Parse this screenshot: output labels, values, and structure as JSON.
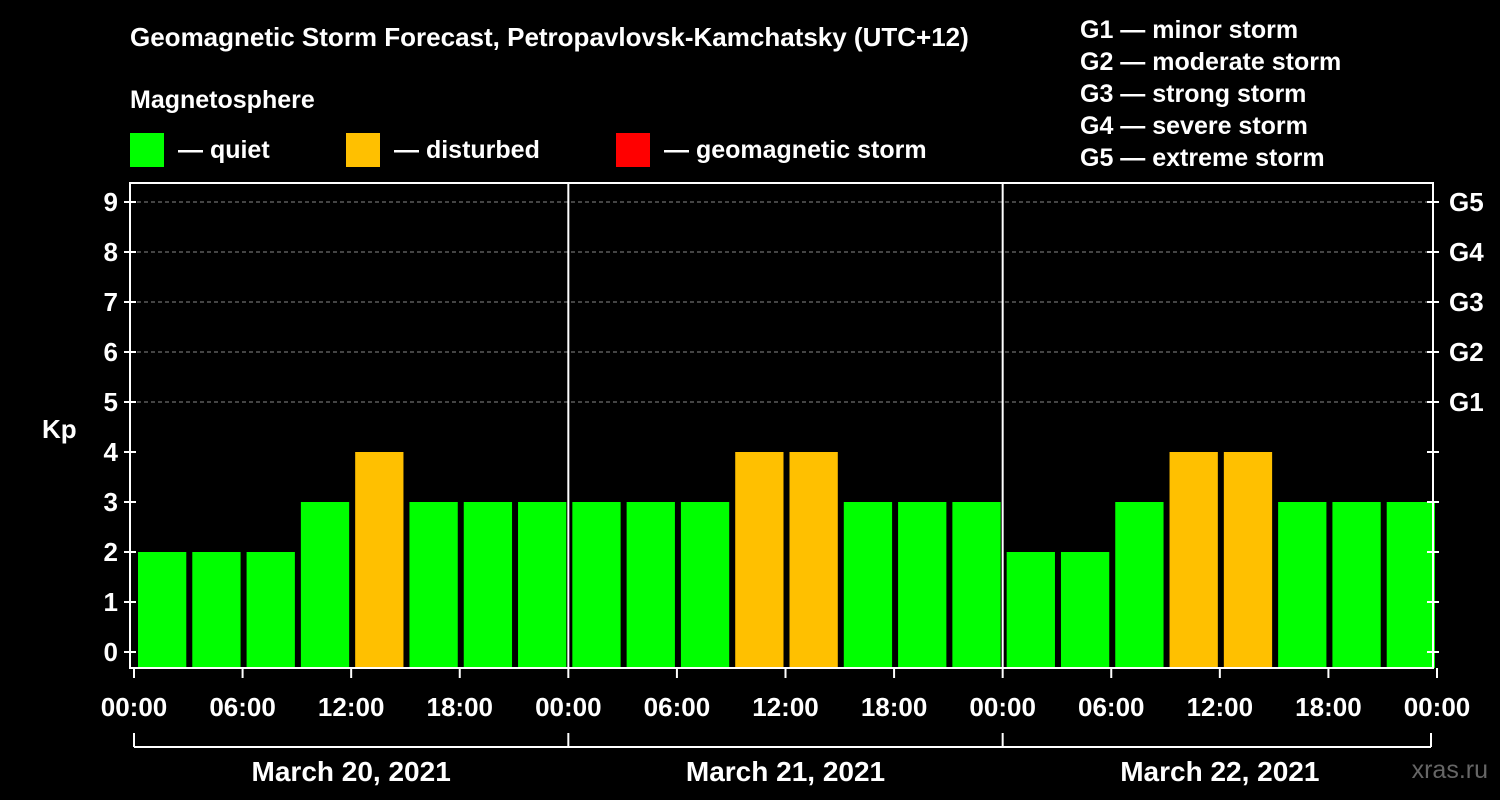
{
  "chart_data": {
    "type": "bar",
    "title": "Geomagnetic Storm Forecast, Petropavlovsk-Kamchatsky (UTC+12)",
    "ylabel": "Kp",
    "ylim": [
      0,
      9
    ],
    "y_ticks": [
      "0",
      "1",
      "2",
      "3",
      "4",
      "5",
      "6",
      "7",
      "8",
      "9"
    ],
    "right_ticks": [
      {
        "kp": 5,
        "label": "G1"
      },
      {
        "kp": 6,
        "label": "G2"
      },
      {
        "kp": 7,
        "label": "G3"
      },
      {
        "kp": 8,
        "label": "G4"
      },
      {
        "kp": 9,
        "label": "G5"
      }
    ],
    "x_tick_labels": [
      "00:00",
      "06:00",
      "12:00",
      "18:00",
      "00:00",
      "06:00",
      "12:00",
      "18:00",
      "00:00",
      "06:00",
      "12:00",
      "18:00",
      "00:00"
    ],
    "days": [
      "March 20, 2021",
      "March 21, 2021",
      "March 22, 2021"
    ],
    "values": [
      2,
      2,
      2,
      3,
      4,
      3,
      3,
      3,
      3,
      3,
      3,
      4,
      4,
      3,
      3,
      3,
      2,
      2,
      3,
      4,
      4,
      3,
      3,
      3
    ],
    "grid": true,
    "legend": {
      "title": "Magnetosphere",
      "items": [
        {
          "label": "— quiet",
          "color": "#00ff00"
        },
        {
          "label": "— disturbed",
          "color": "#ffc000"
        },
        {
          "label": "— geomagnetic storm",
          "color": "#ff0000"
        }
      ]
    },
    "storm_levels": [
      "G1 — minor storm",
      "G2 — moderate storm",
      "G3 — strong storm",
      "G4 — severe storm",
      "G5 — extreme storm"
    ]
  },
  "colors": {
    "quiet": "#00ff00",
    "disturbed": "#ffc000",
    "storm": "#ff0000",
    "background": "#000000"
  },
  "watermark": "xras.ru"
}
